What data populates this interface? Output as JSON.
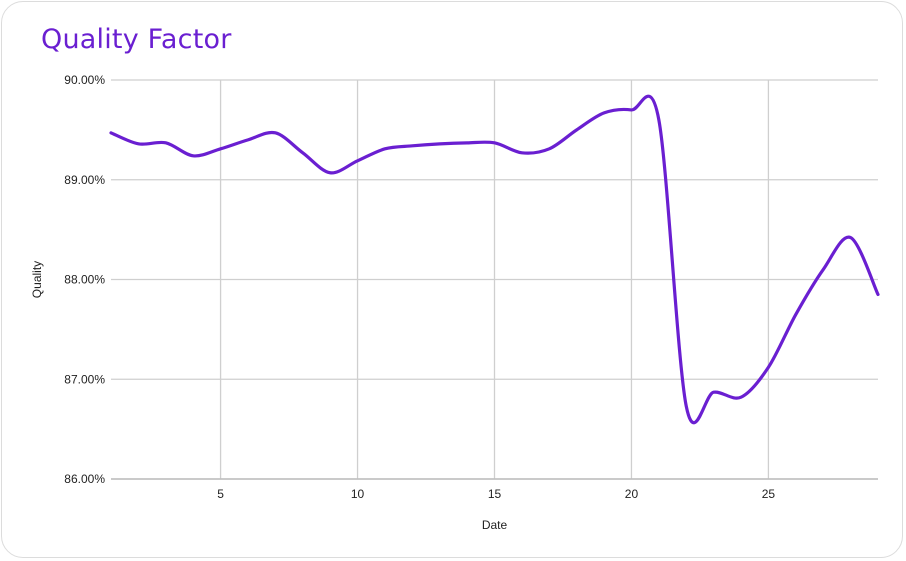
{
  "chart_data": {
    "type": "line",
    "title": "Quality Factor",
    "xlabel": "Date",
    "ylabel": "Quality",
    "xlim": [
      1,
      29
    ],
    "ylim": [
      86,
      90
    ],
    "x_ticks": [
      5,
      10,
      15,
      20,
      25
    ],
    "y_ticks": [
      86,
      87,
      88,
      89,
      90
    ],
    "y_tick_labels": [
      "86.00%",
      "87.00%",
      "88.00%",
      "89.00%",
      "90.00%"
    ],
    "grid": true,
    "legend": "none",
    "series": [
      {
        "color": "#6a1fd1",
        "x": [
          1,
          2,
          3,
          4,
          5,
          6,
          7,
          8,
          9,
          10,
          11,
          12,
          13,
          14,
          15,
          16,
          17,
          18,
          19,
          20,
          21,
          22,
          23,
          24,
          25,
          26,
          27,
          28,
          29
        ],
        "y": [
          89.47,
          89.36,
          89.37,
          89.24,
          89.31,
          89.4,
          89.47,
          89.27,
          89.07,
          89.19,
          89.31,
          89.34,
          89.36,
          89.37,
          89.37,
          89.27,
          89.31,
          89.5,
          89.67,
          89.7,
          89.6,
          86.73,
          86.87,
          86.82,
          87.12,
          87.65,
          88.1,
          88.42,
          87.85
        ]
      }
    ]
  }
}
